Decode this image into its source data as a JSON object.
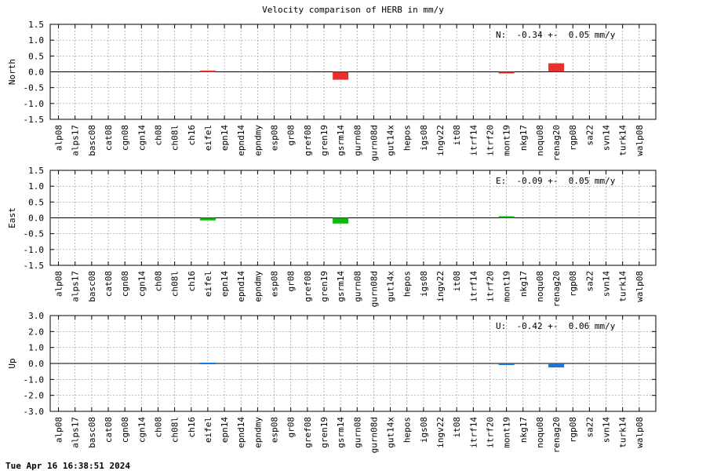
{
  "title": "Velocity comparison of HERB in mm/y",
  "footer": "Tue Apr 16 16:38:51 2024",
  "chart_data": [
    {
      "type": "bar",
      "ylabel": "North",
      "ylim": [
        -1.5,
        1.5
      ],
      "yticks": [
        "1.5",
        "1.0",
        "0.5",
        "0.0",
        "-0.5",
        "-1.0",
        "-1.5"
      ],
      "ytick_values": [
        1.5,
        1.0,
        0.5,
        0.0,
        -0.5,
        -1.0,
        -1.5
      ],
      "annotation": "N:  -0.34 +-  0.05 mm/y",
      "color": "#e8302d",
      "grid": true,
      "categories": [
        "alp08",
        "alps17",
        "basc08",
        "cat08",
        "cgn08",
        "cgn14",
        "ch08",
        "ch08l",
        "ch16",
        "eifel",
        "epn14",
        "epnd14",
        "epndmy",
        "esp08",
        "gr08",
        "gref08",
        "gren19",
        "gsrm14",
        "gurn08",
        "gurn08d",
        "gut14x",
        "hepos",
        "igs08",
        "ingv22",
        "it08",
        "itrf14",
        "itrf20",
        "mont19",
        "nkg17",
        "noqu08",
        "renag20",
        "rgp08",
        "sa22",
        "svn14",
        "turk14",
        "walp08"
      ],
      "values": [
        0,
        0,
        0,
        0,
        0,
        0,
        0,
        0,
        0,
        0.04,
        0,
        0,
        0,
        0,
        0,
        0,
        0,
        -0.25,
        0,
        0,
        0,
        0,
        0,
        0,
        0,
        0,
        0,
        -0.05,
        0,
        0,
        0.27,
        0,
        0,
        0,
        0,
        0
      ]
    },
    {
      "type": "bar",
      "ylabel": "East",
      "ylim": [
        -1.5,
        1.5
      ],
      "yticks": [
        "1.5",
        "1.0",
        "0.5",
        "0.0",
        "-0.5",
        "-1.0",
        "-1.5"
      ],
      "ytick_values": [
        1.5,
        1.0,
        0.5,
        0.0,
        -0.5,
        -1.0,
        -1.5
      ],
      "annotation": "E:  -0.09 +-  0.05 mm/y",
      "color": "#11b60e",
      "grid": true,
      "categories": [
        "alp08",
        "alps17",
        "basc08",
        "cat08",
        "cgn08",
        "cgn14",
        "ch08",
        "ch08l",
        "ch16",
        "eifel",
        "epn14",
        "epnd14",
        "epndmy",
        "esp08",
        "gr08",
        "gref08",
        "gren19",
        "gsrm14",
        "gurn08",
        "gurn08d",
        "gut14x",
        "hepos",
        "igs08",
        "ingv22",
        "it08",
        "itrf14",
        "itrf20",
        "mont19",
        "nkg17",
        "noqu08",
        "renag20",
        "rgp08",
        "sa22",
        "svn14",
        "turk14",
        "walp08"
      ],
      "values": [
        0,
        0,
        0,
        0,
        0,
        0,
        0,
        0,
        0,
        -0.08,
        0,
        0,
        0,
        0,
        0,
        0,
        0,
        -0.18,
        0,
        0,
        0,
        0,
        0,
        0,
        0,
        0,
        0,
        0.05,
        0,
        0,
        0,
        0,
        0,
        0,
        0,
        0
      ]
    },
    {
      "type": "bar",
      "ylabel": "Up",
      "ylim": [
        -3.0,
        3.0
      ],
      "yticks": [
        "3.0",
        "2.0",
        "1.0",
        "0.0",
        "-1.0",
        "-2.0",
        "-3.0"
      ],
      "ytick_values": [
        3.0,
        2.0,
        1.0,
        0.0,
        -1.0,
        -2.0,
        -3.0
      ],
      "annotation": "U:  -0.42 +-  0.06 mm/y",
      "color": "#1976e0",
      "grid": true,
      "categories": [
        "alp08",
        "alps17",
        "basc08",
        "cat08",
        "cgn08",
        "cgn14",
        "ch08",
        "ch08l",
        "ch16",
        "eifel",
        "epn14",
        "epnd14",
        "epndmy",
        "esp08",
        "gr08",
        "gref08",
        "gren19",
        "gsrm14",
        "gurn08",
        "gurn08d",
        "gut14x",
        "hepos",
        "igs08",
        "ingv22",
        "it08",
        "itrf14",
        "itrf20",
        "mont19",
        "nkg17",
        "noqu08",
        "renag20",
        "rgp08",
        "sa22",
        "svn14",
        "turk14",
        "walp08"
      ],
      "values": [
        0,
        0,
        0,
        0,
        0,
        0,
        0,
        0,
        0,
        0.05,
        0,
        0,
        0,
        0,
        0,
        0,
        0,
        0,
        0,
        0,
        0,
        0,
        0,
        0,
        0,
        0,
        0,
        -0.06,
        0,
        0,
        -0.25,
        0,
        0,
        0,
        0,
        0
      ]
    }
  ]
}
